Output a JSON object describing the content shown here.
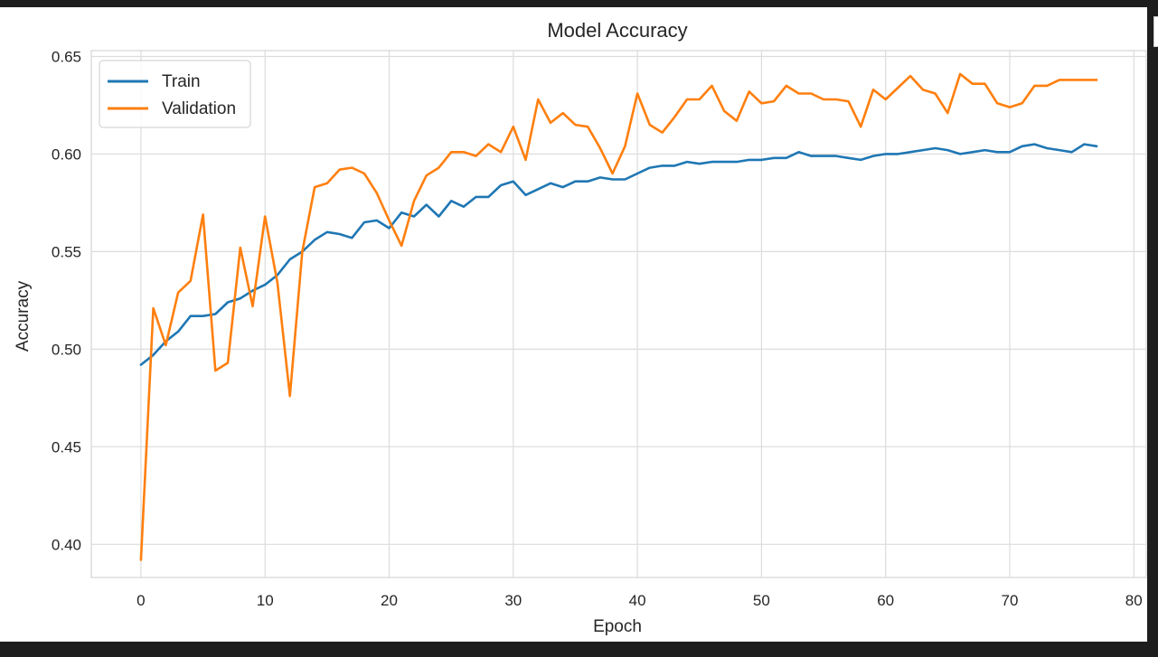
{
  "chart_data": {
    "type": "line",
    "title": "Model Accuracy",
    "xlabel": "Epoch",
    "ylabel": "Accuracy",
    "xlim": [
      -4,
      81
    ],
    "ylim": [
      0.383,
      0.653
    ],
    "xticks": [
      0,
      10,
      20,
      30,
      40,
      50,
      60,
      70,
      80
    ],
    "xtick_labels": [
      "0",
      "10",
      "20",
      "30",
      "40",
      "50",
      "60",
      "70",
      "80"
    ],
    "yticks": [
      0.4,
      0.45,
      0.5,
      0.55,
      0.6,
      0.65
    ],
    "ytick_labels": [
      "0.40",
      "0.45",
      "0.50",
      "0.55",
      "0.60",
      "0.65"
    ],
    "grid": true,
    "legend_position": "top-left",
    "series": [
      {
        "name": "Train",
        "color": "#1f77b4",
        "values": [
          0.492,
          0.497,
          0.504,
          0.509,
          0.517,
          0.517,
          0.518,
          0.524,
          0.526,
          0.53,
          0.533,
          0.538,
          0.546,
          0.55,
          0.556,
          0.56,
          0.559,
          0.557,
          0.565,
          0.566,
          0.562,
          0.57,
          0.568,
          0.574,
          0.568,
          0.576,
          0.573,
          0.578,
          0.578,
          0.584,
          0.586,
          0.579,
          0.582,
          0.585,
          0.583,
          0.586,
          0.586,
          0.588,
          0.587,
          0.587,
          0.59,
          0.593,
          0.594,
          0.594,
          0.596,
          0.595,
          0.596,
          0.596,
          0.596,
          0.597,
          0.597,
          0.598,
          0.598,
          0.601,
          0.599,
          0.599,
          0.599,
          0.598,
          0.597,
          0.599,
          0.6,
          0.6,
          0.601,
          0.602,
          0.603,
          0.602,
          0.6,
          0.601,
          0.602,
          0.601,
          0.601,
          0.604,
          0.605,
          0.603,
          0.602,
          0.601,
          0.605,
          0.604
        ]
      },
      {
        "name": "Validation",
        "color": "#ff7f0e",
        "values": [
          0.392,
          0.521,
          0.502,
          0.529,
          0.535,
          0.569,
          0.489,
          0.493,
          0.552,
          0.522,
          0.568,
          0.534,
          0.476,
          0.55,
          0.583,
          0.585,
          0.592,
          0.593,
          0.59,
          0.58,
          0.566,
          0.553,
          0.576,
          0.589,
          0.593,
          0.601,
          0.601,
          0.599,
          0.605,
          0.601,
          0.614,
          0.597,
          0.628,
          0.616,
          0.621,
          0.615,
          0.614,
          0.603,
          0.59,
          0.604,
          0.631,
          0.615,
          0.611,
          0.619,
          0.628,
          0.628,
          0.635,
          0.622,
          0.617,
          0.632,
          0.626,
          0.627,
          0.635,
          0.631,
          0.631,
          0.628,
          0.628,
          0.627,
          0.614,
          0.633,
          0.628,
          0.634,
          0.64,
          0.633,
          0.631,
          0.621,
          0.641,
          0.636,
          0.636,
          0.626,
          0.624,
          0.626,
          0.635,
          0.635,
          0.638,
          0.638,
          0.638,
          0.638
        ]
      }
    ]
  }
}
